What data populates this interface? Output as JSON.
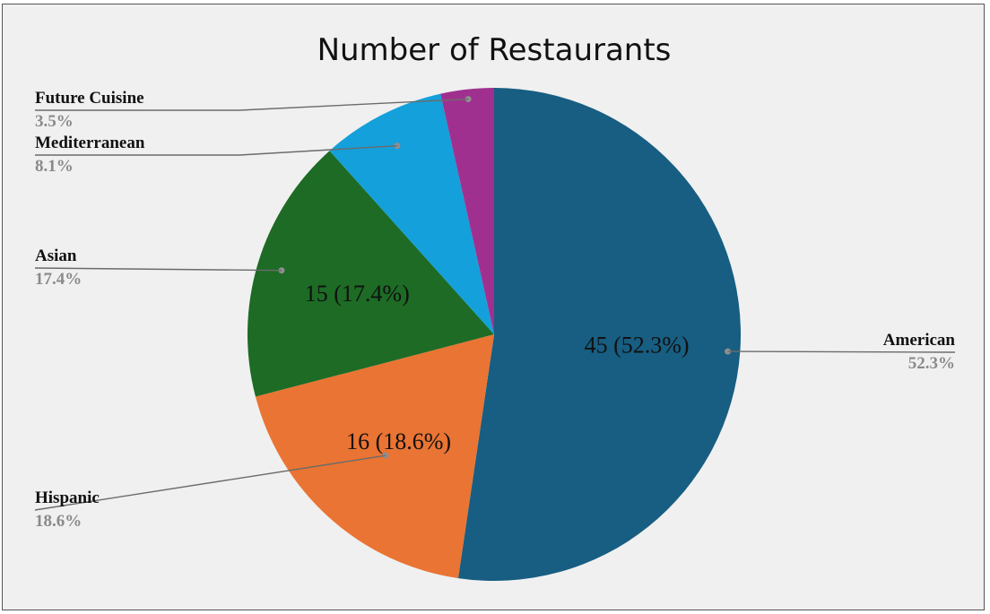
{
  "chart_data": {
    "type": "pie",
    "title": "Number of Restaurants",
    "categories": [
      "American",
      "Hispanic",
      "Asian",
      "Mediterranean",
      "Future Cuisine"
    ],
    "values": [
      45,
      16,
      15,
      7,
      3
    ],
    "percent_labels": [
      "52.3%",
      "18.6%",
      "17.4%",
      "8.1%",
      "3.5%"
    ],
    "data_labels": [
      "45 (52.3%)",
      "16 (18.6%)",
      "15 (17.4%)",
      "",
      ""
    ],
    "colors": [
      "#175e82",
      "#e97433",
      "#1d6b25",
      "#14a0da",
      "#a0308f"
    ],
    "start_angle_deg": 0,
    "direction": "clockwise"
  }
}
